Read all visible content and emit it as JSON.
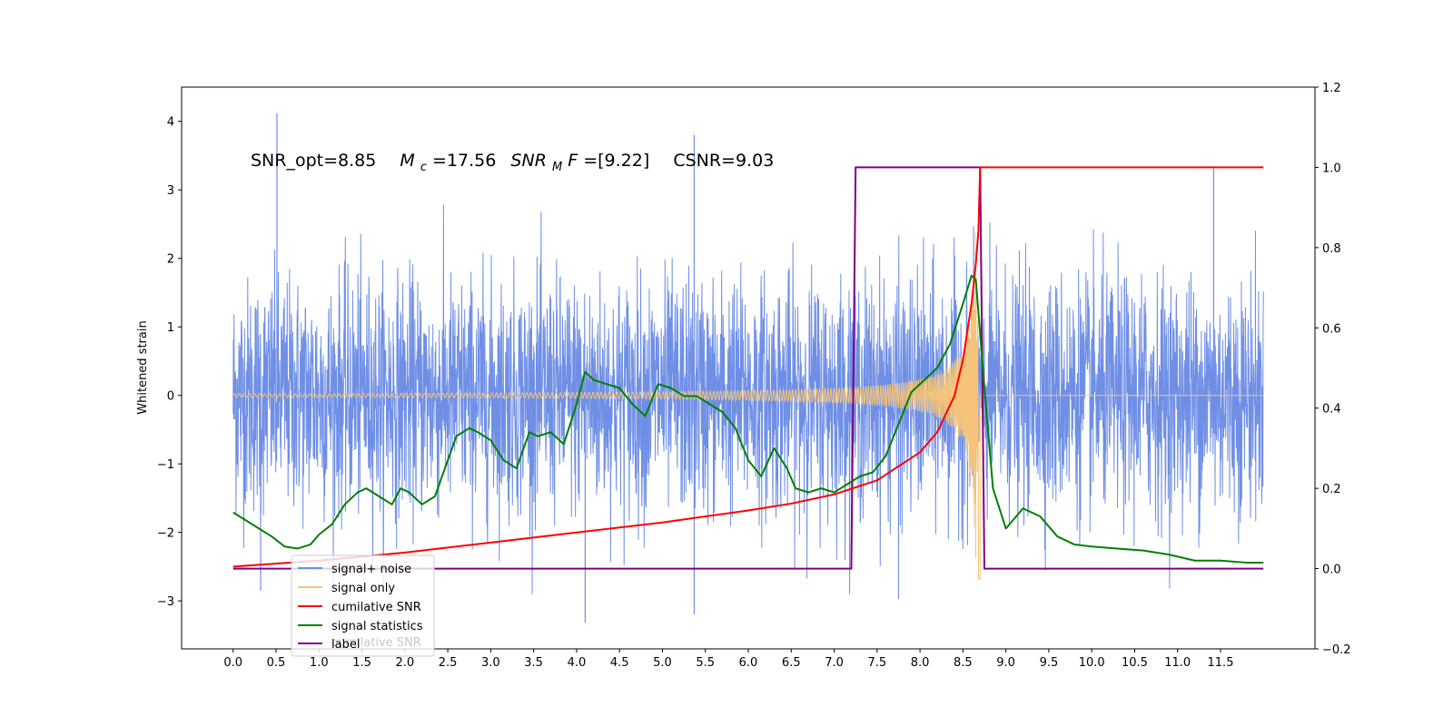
{
  "chart_data": {
    "type": "line",
    "title": "",
    "xlabel": "",
    "ylabel": "Whitened strain",
    "xlim": [
      -0.6,
      12.6
    ],
    "ylim": [
      -3.7,
      4.5
    ],
    "y2lim": [
      -0.2,
      1.2
    ],
    "x_ticks": [
      0.0,
      0.5,
      1.0,
      1.5,
      2.0,
      2.5,
      3.0,
      3.5,
      4.0,
      4.5,
      5.0,
      5.5,
      6.0,
      6.5,
      7.0,
      7.5,
      8.0,
      8.5,
      9.0,
      9.5,
      10.0,
      10.5,
      11.0,
      11.5
    ],
    "x_tick_labels": [
      "0.0",
      "0.5",
      "1.0",
      "1.5",
      "2.0",
      "2.5",
      "3.0",
      "3.5",
      "4.0",
      "4.5",
      "5.0",
      "5.5",
      "6.0",
      "6.5",
      "7.0",
      "7.5",
      "8.0",
      "8.5",
      "9.0",
      "9.5",
      "10.0",
      "10.5",
      "11.0",
      "11.5"
    ],
    "y_ticks": [
      -3,
      -2,
      -1,
      0,
      1,
      2,
      3,
      4
    ],
    "y_tick_labels": [
      "−3",
      "−2",
      "−1",
      "0",
      "1",
      "2",
      "3",
      "4"
    ],
    "y2_ticks": [
      -0.2,
      0.0,
      0.2,
      0.4,
      0.6,
      0.8,
      1.0,
      1.2
    ],
    "y2_tick_labels": [
      "−0.2",
      "0.0",
      "0.2",
      "0.4",
      "0.6",
      "0.8",
      "1.0",
      "1.2"
    ],
    "annotation": {
      "snr_opt": "SNR_opt=8.85",
      "mc_symbol": "M",
      "mc_sub": "c",
      "mc_value": "=17.56",
      "snrmf_symbol": "SNR",
      "snrmf_sub": "M",
      "snrmf_f": "F",
      "snrmf_value": "=[9.22]",
      "csnr": "CSNR=9.03"
    },
    "legend": {
      "placement": "lower-left",
      "entries": [
        "signal+ noise",
        "signal only",
        "cumilative SNR",
        "signal statistics",
        "label"
      ],
      "ghost_text": "cumilative SNR"
    },
    "series": [
      {
        "name": "signal+ noise",
        "axis": "left",
        "color": "#6f8fe6",
        "x_range": [
          0.0,
          12.0
        ],
        "envelope_typical": 1.5,
        "peaks": [
          {
            "x": 0.51,
            "y": 4.12
          },
          {
            "x": 0.32,
            "y": -2.85
          },
          {
            "x": 4.1,
            "y": -3.32
          },
          {
            "x": 5.37,
            "y": 3.8
          },
          {
            "x": 5.37,
            "y": -3.2
          },
          {
            "x": 11.42,
            "y": 3.32
          },
          {
            "x": 7.75,
            "y": -2.97
          }
        ]
      },
      {
        "name": "signal only",
        "axis": "left",
        "color": "#f5c47a",
        "chirp_start": 0.0,
        "chirp_end": 8.7,
        "peak_amplitude": 2.8,
        "flat_after": [
          8.7,
          12.0
        ]
      },
      {
        "name": "cumilative SNR",
        "axis": "right",
        "color": "#ff0000",
        "x": [
          0.0,
          1.0,
          2.0,
          3.0,
          4.0,
          5.0,
          6.0,
          6.5,
          7.0,
          7.5,
          8.0,
          8.2,
          8.4,
          8.5,
          8.6,
          8.65,
          8.68,
          8.7,
          9.0,
          10.0,
          11.0,
          12.0
        ],
        "y": [
          0.005,
          0.02,
          0.04,
          0.065,
          0.09,
          0.115,
          0.145,
          0.162,
          0.185,
          0.22,
          0.29,
          0.34,
          0.43,
          0.52,
          0.66,
          0.76,
          0.84,
          1.0,
          1.0,
          1.0,
          1.0,
          1.0
        ]
      },
      {
        "name": "signal statistics",
        "axis": "right",
        "color": "#008000",
        "x": [
          0.0,
          0.15,
          0.3,
          0.45,
          0.6,
          0.75,
          0.9,
          1.0,
          1.15,
          1.3,
          1.45,
          1.55,
          1.7,
          1.85,
          1.95,
          2.05,
          2.2,
          2.35,
          2.45,
          2.6,
          2.75,
          2.85,
          3.0,
          3.15,
          3.3,
          3.45,
          3.55,
          3.7,
          3.85,
          4.0,
          4.1,
          4.2,
          4.35,
          4.5,
          4.65,
          4.8,
          4.95,
          5.1,
          5.25,
          5.4,
          5.55,
          5.7,
          5.85,
          6.0,
          6.15,
          6.3,
          6.45,
          6.55,
          6.7,
          6.85,
          7.0,
          7.15,
          7.3,
          7.45,
          7.6,
          7.75,
          7.9,
          8.05,
          8.2,
          8.35,
          8.5,
          8.6,
          8.65,
          8.75,
          8.85,
          9.0,
          9.2,
          9.4,
          9.6,
          9.8,
          10.0,
          10.3,
          10.6,
          10.9,
          11.2,
          11.5,
          11.8,
          12.0
        ],
        "y": [
          0.14,
          0.12,
          0.1,
          0.08,
          0.055,
          0.05,
          0.06,
          0.085,
          0.11,
          0.16,
          0.19,
          0.2,
          0.18,
          0.16,
          0.2,
          0.19,
          0.16,
          0.18,
          0.24,
          0.33,
          0.35,
          0.34,
          0.32,
          0.27,
          0.25,
          0.34,
          0.33,
          0.34,
          0.31,
          0.41,
          0.49,
          0.47,
          0.46,
          0.45,
          0.41,
          0.38,
          0.46,
          0.45,
          0.43,
          0.43,
          0.41,
          0.39,
          0.35,
          0.27,
          0.23,
          0.3,
          0.25,
          0.2,
          0.19,
          0.2,
          0.19,
          0.21,
          0.23,
          0.24,
          0.28,
          0.36,
          0.44,
          0.47,
          0.5,
          0.56,
          0.66,
          0.73,
          0.72,
          0.45,
          0.2,
          0.1,
          0.15,
          0.13,
          0.08,
          0.06,
          0.055,
          0.05,
          0.045,
          0.035,
          0.02,
          0.02,
          0.015,
          0.015
        ]
      },
      {
        "name": "label",
        "axis": "right",
        "color": "#800080",
        "x": [
          0.0,
          7.2,
          7.25,
          8.7,
          8.75,
          12.0
        ],
        "y": [
          0.0,
          0.0,
          1.0,
          1.0,
          0.0,
          0.0
        ]
      }
    ]
  }
}
